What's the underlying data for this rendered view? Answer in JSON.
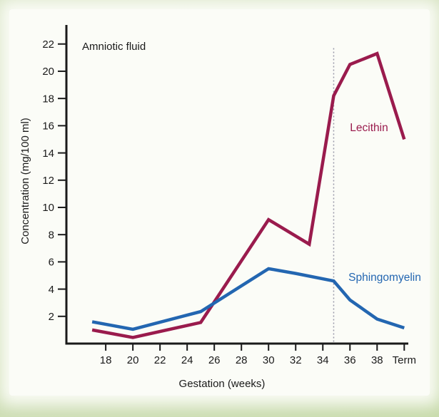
{
  "chart_data": {
    "type": "line",
    "title": "",
    "annotation": "Amniotic fluid",
    "xlabel": "Gestation (weeks)",
    "ylabel": "Concentration (mg/100 ml)",
    "xlim": [
      15.1,
      40.3
    ],
    "ylim": [
      0,
      23.4
    ],
    "grid": false,
    "legend_position": "inline-labels",
    "x_ticks": [
      {
        "value": 18,
        "label": "18"
      },
      {
        "value": 20,
        "label": "20"
      },
      {
        "value": 22,
        "label": "22"
      },
      {
        "value": 24,
        "label": "24"
      },
      {
        "value": 26,
        "label": "26"
      },
      {
        "value": 28,
        "label": "28"
      },
      {
        "value": 30,
        "label": "30"
      },
      {
        "value": 32,
        "label": "32"
      },
      {
        "value": 34,
        "label": "34"
      },
      {
        "value": 36,
        "label": "36"
      },
      {
        "value": 38,
        "label": "38"
      },
      {
        "value": 40,
        "label": "Term"
      }
    ],
    "y_ticks": [
      2,
      4,
      6,
      8,
      10,
      12,
      14,
      16,
      18,
      20,
      22
    ],
    "dashed_vline": {
      "x": 34.8,
      "y_top": 21.7,
      "color": "#9898a8"
    },
    "series": [
      {
        "name": "Lecithin",
        "color": "#9a1b4d",
        "points": [
          [
            17,
            1.0
          ],
          [
            20,
            0.45
          ],
          [
            25,
            1.55
          ],
          [
            30,
            9.1
          ],
          [
            33,
            7.3
          ],
          [
            34.8,
            18.2
          ],
          [
            36,
            20.5
          ],
          [
            38,
            21.3
          ],
          [
            40,
            15.0
          ]
        ]
      },
      {
        "name": "Sphingomyelin",
        "color": "#2366b1",
        "points": [
          [
            17,
            1.6
          ],
          [
            20,
            1.05
          ],
          [
            25,
            2.35
          ],
          [
            30,
            5.5
          ],
          [
            32,
            5.15
          ],
          [
            34.8,
            4.6
          ],
          [
            36,
            3.2
          ],
          [
            38,
            1.8
          ],
          [
            40,
            1.15
          ]
        ]
      }
    ]
  },
  "colors": {
    "axis": "#1a1a1a",
    "panel_background": "#fbfcf7",
    "frame_green": "#cfdfb6"
  }
}
